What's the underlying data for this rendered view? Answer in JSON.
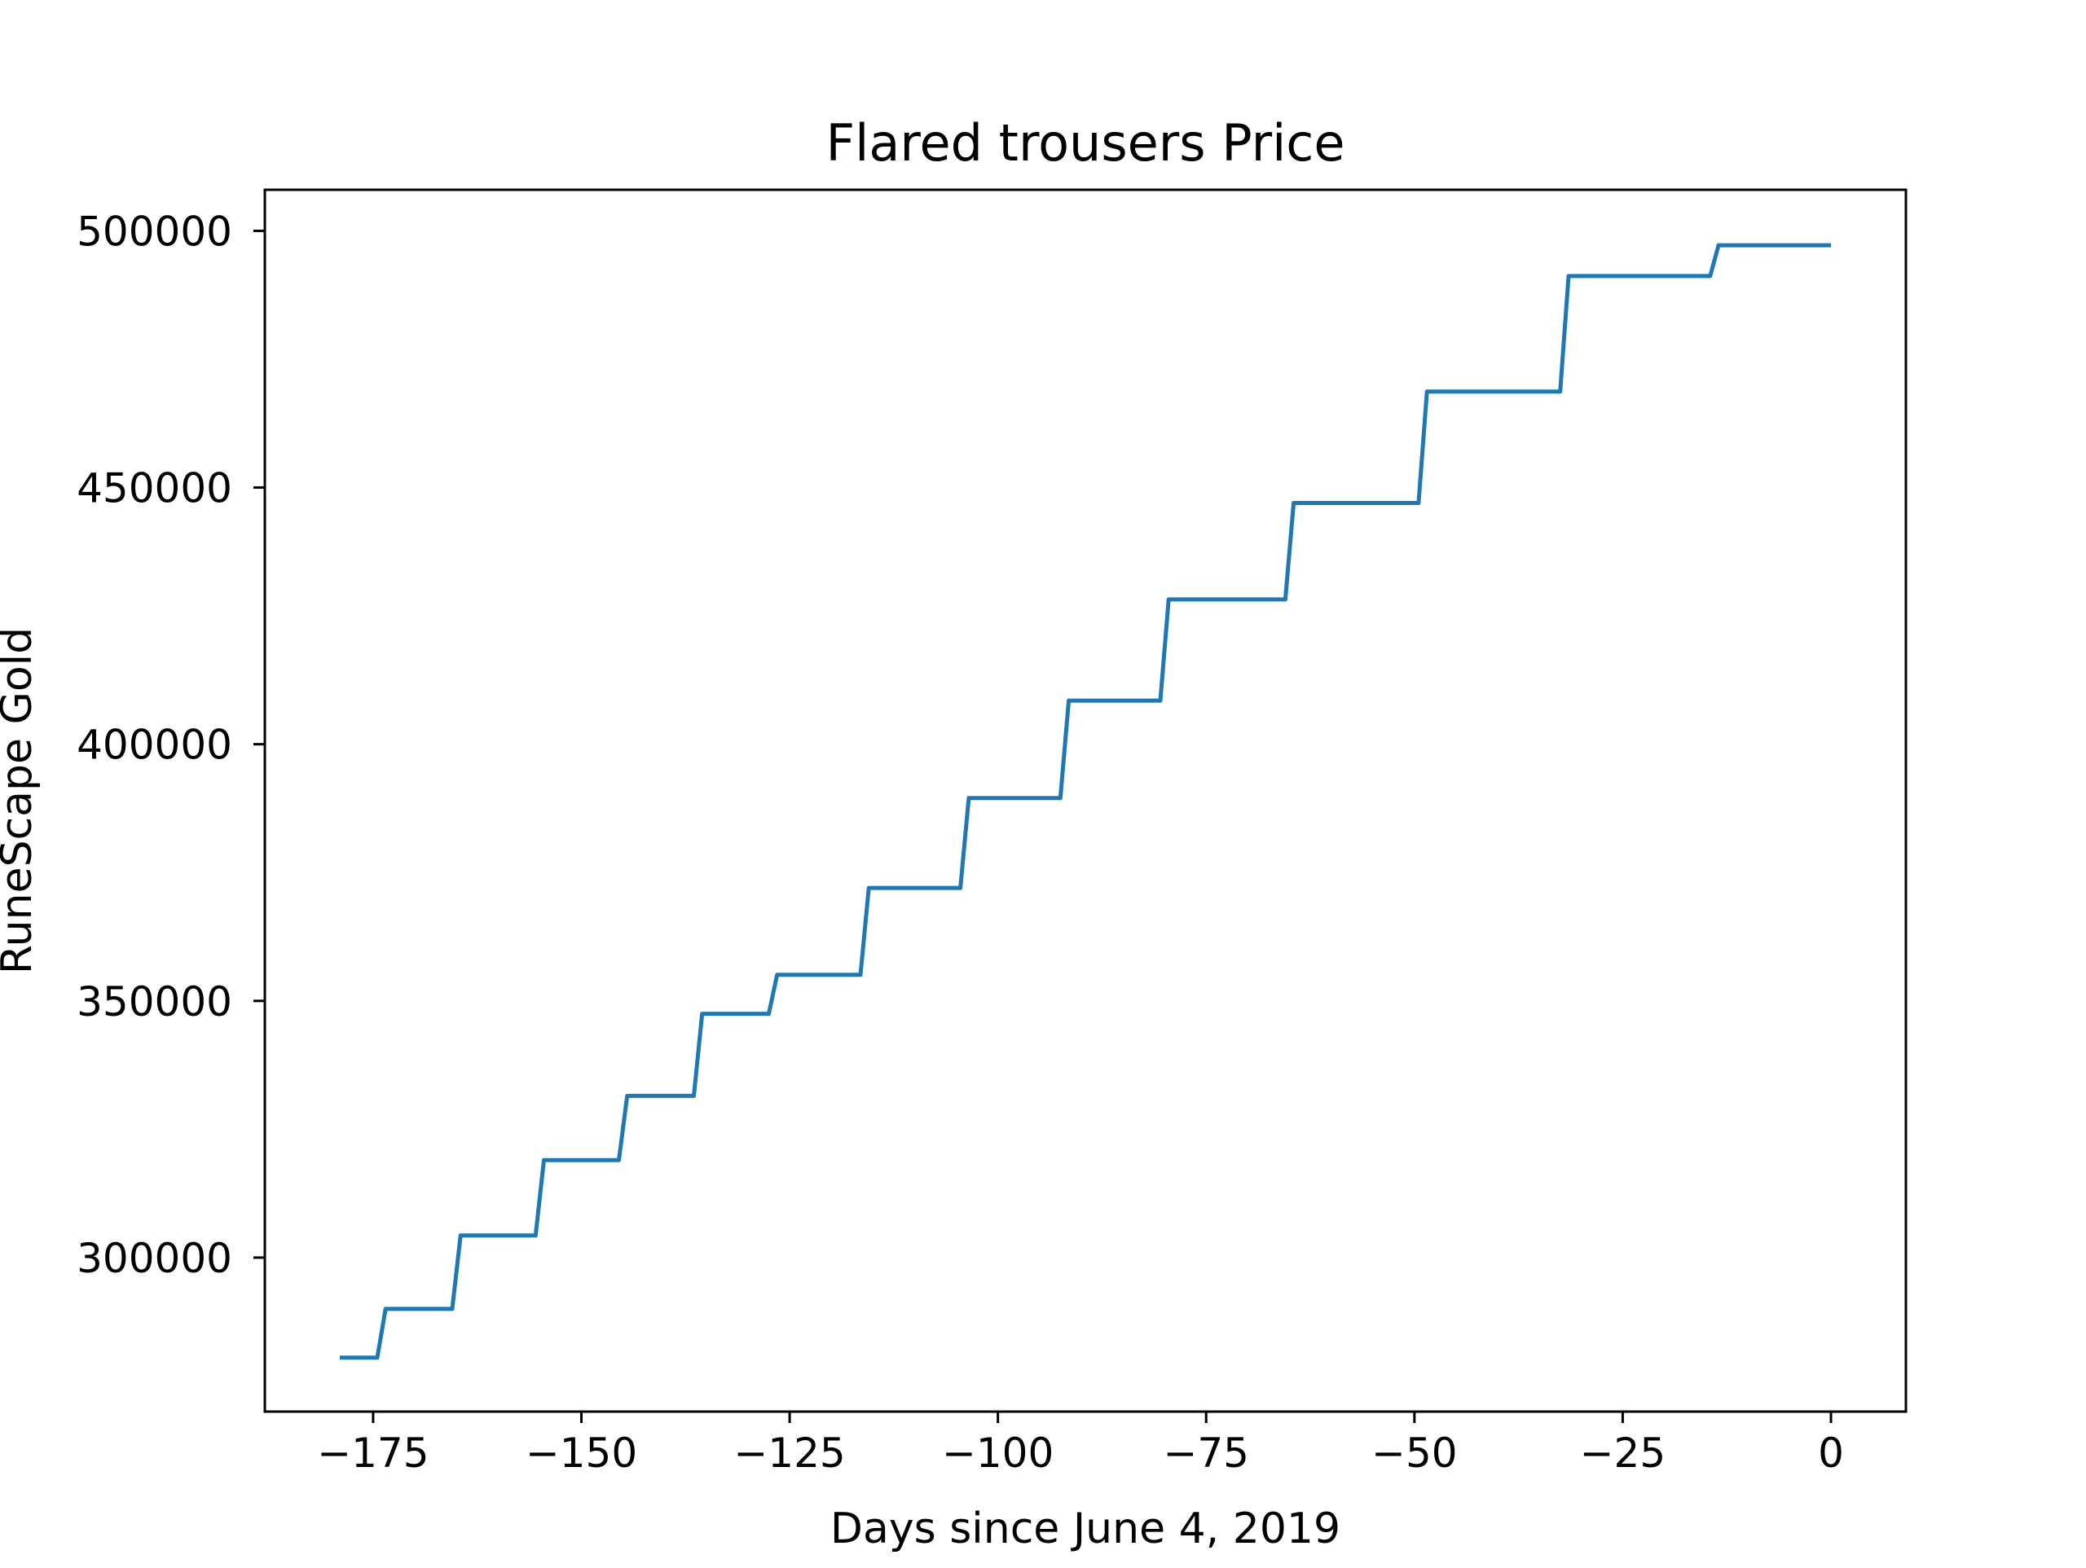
{
  "chart_data": {
    "type": "line",
    "title": "Flared trousers Price",
    "xlabel": "Days since June 4, 2019",
    "ylabel": "RuneScape Gold",
    "xlim": [
      -188,
      9
    ],
    "ylim": [
      270000,
      508000
    ],
    "xticks": [
      -175,
      -150,
      -125,
      -100,
      -75,
      -50,
      -25,
      0
    ],
    "xtick_labels": [
      "−175",
      "−150",
      "−125",
      "−100",
      "−75",
      "−50",
      "−25",
      "0"
    ],
    "yticks": [
      300000,
      350000,
      400000,
      450000,
      500000
    ],
    "ytick_labels": [
      "300000",
      "350000",
      "400000",
      "450000",
      "500000"
    ],
    "grid": false,
    "legend": "none",
    "series": [
      {
        "color": "#1f77b4",
        "x": [
          -179,
          -174.5,
          -173.5,
          -165.5,
          -164.5,
          -155.5,
          -154.5,
          -145.5,
          -144.5,
          -136.5,
          -135.5,
          -127.5,
          -126.5,
          -116.5,
          -115.5,
          -104.5,
          -103.5,
          -92.5,
          -91.5,
          -80.5,
          -79.5,
          -65.5,
          -64.5,
          -49.5,
          -48.5,
          -32.5,
          -31.5,
          -14.5,
          -13.5,
          0
        ],
        "y": [
          280500,
          280500,
          290000,
          290000,
          304300,
          304300,
          319000,
          319000,
          331500,
          331500,
          347500,
          347500,
          355100,
          355100,
          372000,
          372000,
          389500,
          389500,
          408500,
          408500,
          428200,
          428200,
          447000,
          447000,
          468700,
          468700,
          491200,
          491200,
          497200,
          497200
        ]
      }
    ]
  }
}
